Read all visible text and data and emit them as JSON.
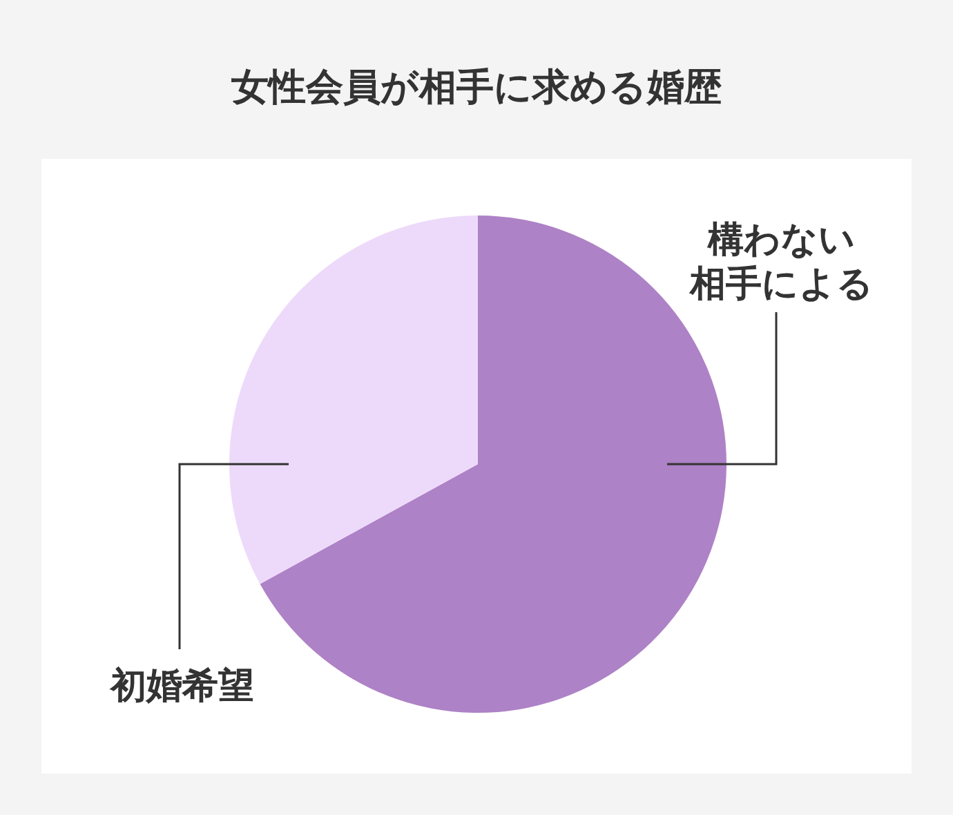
{
  "chart_data": {
    "type": "pie",
    "title": "女性会員が相手に求める婚歴",
    "categories": [
      "構わない相手による",
      "初婚希望"
    ],
    "values": [
      67,
      33
    ],
    "colors": [
      "#ae82c6",
      "#eddafa"
    ]
  }
}
